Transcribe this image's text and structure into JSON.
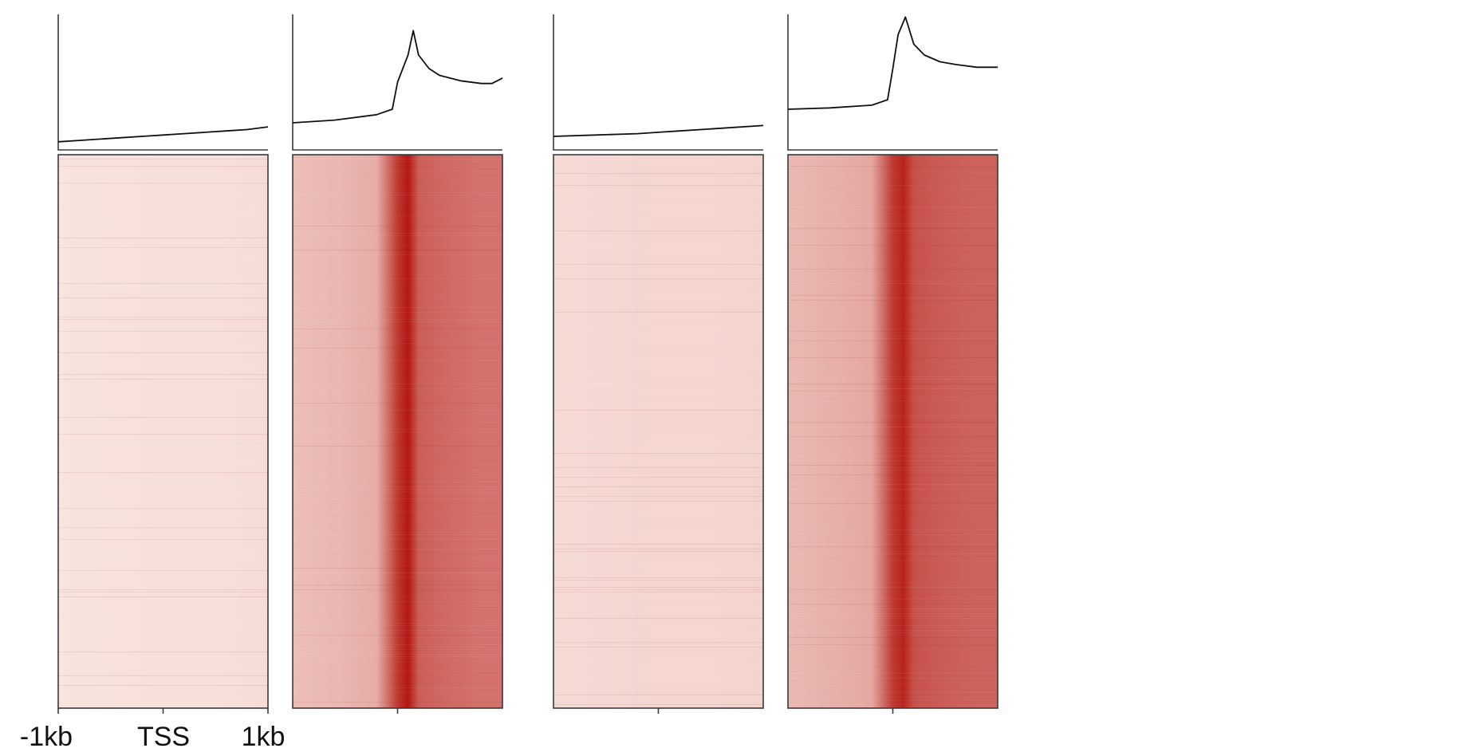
{
  "chart_data": {
    "type": "heatmap",
    "title": "",
    "xlabel": "",
    "ylabel": "",
    "x_tick_labels": [
      "-1kb",
      "TSS",
      "1kb"
    ],
    "x_range_kb": [
      -1,
      1
    ],
    "colors": {
      "low": "#fdf1ec",
      "high": "#b00b05",
      "line": "#111111"
    },
    "panels": [
      {
        "profile": {
          "x_kb": [
            -1.0,
            -0.8,
            -0.6,
            -0.4,
            -0.2,
            0.0,
            0.2,
            0.4,
            0.6,
            0.8,
            1.0
          ],
          "y": [
            0.06,
            0.07,
            0.08,
            0.09,
            0.1,
            0.11,
            0.12,
            0.13,
            0.14,
            0.15,
            0.17
          ]
        },
        "heatmap_columns": {
          "x_kb": [
            -1.0,
            -0.5,
            0.0,
            0.5,
            1.0
          ],
          "intensity": [
            0.06,
            0.07,
            0.08,
            0.08,
            0.09
          ]
        }
      },
      {
        "profile": {
          "x_kb": [
            -1.0,
            -0.6,
            -0.2,
            -0.05,
            0.0,
            0.1,
            0.15,
            0.2,
            0.3,
            0.4,
            0.6,
            0.8,
            0.9,
            1.0
          ],
          "y": [
            0.2,
            0.22,
            0.26,
            0.3,
            0.5,
            0.7,
            0.88,
            0.7,
            0.6,
            0.55,
            0.51,
            0.49,
            0.49,
            0.53
          ]
        },
        "heatmap_columns": {
          "x_kb": [
            -1.0,
            -0.6,
            -0.2,
            0.0,
            0.1,
            0.2,
            0.4,
            0.6,
            0.8,
            1.0
          ],
          "intensity": [
            0.22,
            0.25,
            0.3,
            0.8,
            0.95,
            0.65,
            0.6,
            0.58,
            0.55,
            0.55
          ]
        }
      },
      {
        "profile": {
          "x_kb": [
            -1.0,
            -0.6,
            -0.2,
            0.0,
            0.2,
            0.6,
            1.0
          ],
          "y": [
            0.1,
            0.11,
            0.12,
            0.13,
            0.14,
            0.16,
            0.18
          ]
        },
        "heatmap_columns": {
          "x_kb": [
            -1.0,
            -0.5,
            0.0,
            0.5,
            1.0
          ],
          "intensity": [
            0.1,
            0.11,
            0.12,
            0.12,
            0.13
          ]
        }
      },
      {
        "profile": {
          "x_kb": [
            -1.0,
            -0.6,
            -0.2,
            -0.05,
            0.0,
            0.05,
            0.12,
            0.2,
            0.3,
            0.45,
            0.6,
            0.8,
            1.0
          ],
          "y": [
            0.3,
            0.31,
            0.33,
            0.37,
            0.6,
            0.85,
            0.98,
            0.78,
            0.7,
            0.65,
            0.63,
            0.61,
            0.61
          ]
        },
        "heatmap_columns": {
          "x_kb": [
            -1.0,
            -0.6,
            -0.2,
            0.0,
            0.1,
            0.2,
            0.4,
            0.6,
            0.8,
            1.0
          ],
          "intensity": [
            0.25,
            0.28,
            0.32,
            0.8,
            0.9,
            0.7,
            0.66,
            0.64,
            0.62,
            0.62
          ]
        }
      }
    ]
  }
}
